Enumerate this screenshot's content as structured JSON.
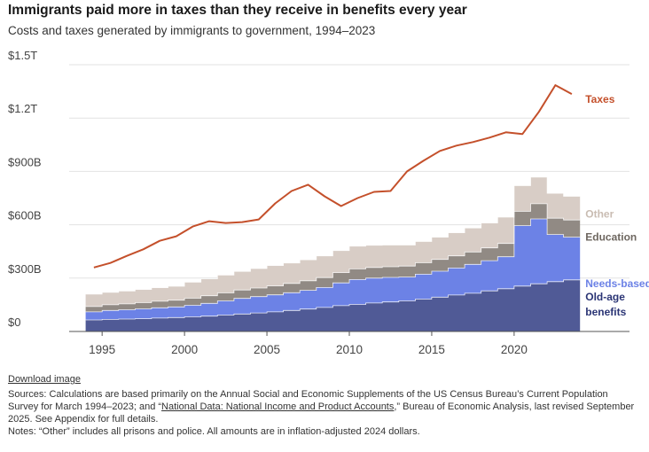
{
  "title": "Immigrants paid more in taxes than they receive in benefits every year",
  "subtitle": "Costs and taxes generated by immigrants to government, 1994–2023",
  "download_label": "Download image",
  "sources": {
    "prefix": "Sources: Calculations are based primarily on the Annual Social and Economic Supplements of the US Census Bureau’s Current Population Survey for March 1994–2023; and “",
    "link": "National Data: National Income and Product Accounts",
    "suffix": ",” Bureau of Economic Analysis, last revised September 2025. See Appendix for full details."
  },
  "notes": "Notes: “Other” includes all prisons and police. All amounts are in inflation-adjusted 2024 dollars.",
  "colors": {
    "taxes": "#c4502b",
    "old_age": "#505a96",
    "needs": "#6c82e6",
    "education": "#918a84",
    "other": "#d8cdc6",
    "grid": "#e2e2e2",
    "axis": "#555555"
  },
  "chart_data": {
    "type": "area",
    "title": "Immigrants paid more in taxes than they receive in benefits every year",
    "xlabel": "",
    "ylabel": "",
    "xlim": [
      1993,
      2027
    ],
    "ylim": [
      0,
      1500
    ],
    "y_unit": "billions of 2024 dollars",
    "yticks": [
      0,
      300,
      600,
      900,
      1200,
      1500
    ],
    "ytick_labels": [
      "$0",
      "$300B",
      "$600B",
      "$900B",
      "$1.2T",
      "$1.5T"
    ],
    "xticks": [
      1995,
      2000,
      2005,
      2010,
      2015,
      2020
    ],
    "xtick_labels": [
      "1995",
      "2000",
      "2005",
      "2010",
      "2015",
      "2020"
    ],
    "years": [
      1994,
      1995,
      1996,
      1997,
      1998,
      1999,
      2000,
      2001,
      2002,
      2003,
      2004,
      2005,
      2006,
      2007,
      2008,
      2009,
      2010,
      2011,
      2012,
      2013,
      2014,
      2015,
      2016,
      2017,
      2018,
      2019,
      2020,
      2021,
      2022,
      2023
    ],
    "stacked_series": [
      {
        "name": "Old-age benefits",
        "label_lines": [
          "Old-age",
          "benefits"
        ],
        "values": [
          65,
          68,
          70,
          72,
          75,
          78,
          82,
          86,
          92,
          98,
          104,
          110,
          118,
          126,
          135,
          145,
          152,
          160,
          166,
          172,
          182,
          193,
          205,
          215,
          228,
          240,
          255,
          268,
          280,
          290
        ]
      },
      {
        "name": "Needs-based",
        "label_lines": [
          "Needs-based"
        ],
        "values": [
          45,
          50,
          52,
          55,
          58,
          60,
          65,
          72,
          80,
          88,
          92,
          96,
          100,
          105,
          112,
          128,
          140,
          140,
          138,
          134,
          140,
          146,
          152,
          162,
          170,
          180,
          340,
          365,
          265,
          240
        ]
      },
      {
        "name": "Education",
        "label_lines": [
          "Education"
        ],
        "values": [
          30,
          32,
          33,
          35,
          37,
          38,
          40,
          43,
          45,
          47,
          48,
          50,
          52,
          54,
          56,
          58,
          60,
          60,
          60,
          62,
          64,
          66,
          68,
          70,
          72,
          75,
          80,
          85,
          92,
          97
        ]
      },
      {
        "name": "Other",
        "label_lines": [
          "Other"
        ],
        "values": [
          70,
          70,
          72,
          74,
          76,
          78,
          90,
          95,
          100,
          105,
          110,
          115,
          115,
          118,
          122,
          124,
          128,
          125,
          122,
          118,
          120,
          125,
          130,
          135,
          140,
          148,
          145,
          150,
          140,
          133
        ]
      }
    ],
    "line_series": {
      "name": "Taxes",
      "label": "Taxes",
      "values": [
        360,
        385,
        425,
        462,
        510,
        535,
        590,
        620,
        610,
        615,
        630,
        720,
        790,
        825,
        760,
        705,
        750,
        785,
        790,
        900,
        960,
        1015,
        1045,
        1065,
        1090,
        1120,
        1110,
        1235,
        1385,
        1335
      ]
    }
  }
}
